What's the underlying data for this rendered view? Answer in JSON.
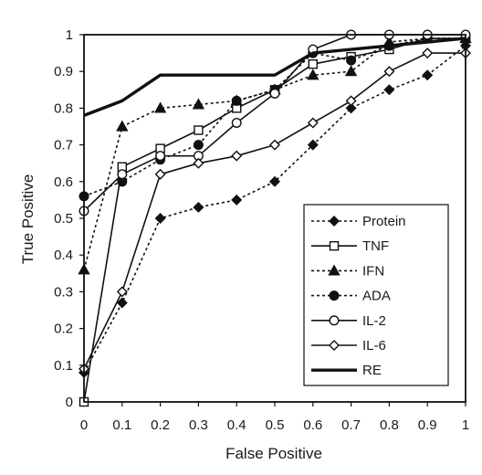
{
  "chart_data": {
    "type": "line",
    "title": "",
    "xlabel": "False Positive",
    "ylabel": "True Positive",
    "xlim": [
      0,
      1
    ],
    "ylim": [
      0,
      1
    ],
    "x_ticks": [
      "0",
      "0.1",
      "0.2",
      "0.3",
      "0.4",
      "0.5",
      "0.6",
      "0.7",
      "0.8",
      "0.9",
      "1"
    ],
    "y_ticks": [
      "0",
      "0.1",
      "0.2",
      "0.3",
      "0.4",
      "0.5",
      "0.6",
      "0.7",
      "0.8",
      "0.9",
      "1"
    ],
    "grid": false,
    "legend_position": "bottom-right",
    "series": [
      {
        "name": "Protein",
        "line": "dashed",
        "marker": "diamond",
        "filled": true,
        "width": 1.6,
        "points": [
          [
            0,
            0.08
          ],
          [
            0.1,
            0.27
          ],
          [
            0.2,
            0.5
          ],
          [
            0.3,
            0.53
          ],
          [
            0.4,
            0.55
          ],
          [
            0.5,
            0.6
          ],
          [
            0.6,
            0.7
          ],
          [
            0.7,
            0.8
          ],
          [
            0.8,
            0.85
          ],
          [
            0.9,
            0.89
          ],
          [
            1,
            0.97
          ]
        ]
      },
      {
        "name": "TNF",
        "line": "solid",
        "marker": "square",
        "filled": false,
        "width": 1.6,
        "points": [
          [
            0,
            0.0
          ],
          [
            0.1,
            0.64
          ],
          [
            0.2,
            0.69
          ],
          [
            0.3,
            0.74
          ],
          [
            0.4,
            0.8
          ],
          [
            0.5,
            0.85
          ],
          [
            0.6,
            0.92
          ],
          [
            0.7,
            0.94
          ],
          [
            0.8,
            0.96
          ],
          [
            0.9,
            0.99
          ],
          [
            1,
            0.99
          ]
        ]
      },
      {
        "name": "IFN",
        "line": "dashed",
        "marker": "triangle",
        "filled": true,
        "width": 1.6,
        "points": [
          [
            0,
            0.36
          ],
          [
            0.1,
            0.75
          ],
          [
            0.2,
            0.8
          ],
          [
            0.3,
            0.81
          ],
          [
            0.4,
            0.82
          ],
          [
            0.5,
            0.85
          ],
          [
            0.6,
            0.89
          ],
          [
            0.7,
            0.9
          ],
          [
            0.8,
            0.98
          ],
          [
            0.9,
            0.99
          ],
          [
            1,
            0.99
          ]
        ]
      },
      {
        "name": "ADA",
        "line": "dashed",
        "marker": "circle",
        "filled": true,
        "width": 1.6,
        "points": [
          [
            0,
            0.56
          ],
          [
            0.1,
            0.6
          ],
          [
            0.2,
            0.66
          ],
          [
            0.3,
            0.7
          ],
          [
            0.4,
            0.82
          ],
          [
            0.5,
            0.85
          ],
          [
            0.6,
            0.95
          ],
          [
            0.7,
            0.93
          ],
          [
            0.8,
            0.97
          ],
          [
            0.9,
            0.99
          ],
          [
            1,
            0.99
          ]
        ]
      },
      {
        "name": "IL-2",
        "line": "solid",
        "marker": "circle",
        "filled": false,
        "width": 1.6,
        "points": [
          [
            0,
            0.52
          ],
          [
            0.1,
            0.62
          ],
          [
            0.2,
            0.67
          ],
          [
            0.3,
            0.67
          ],
          [
            0.4,
            0.76
          ],
          [
            0.5,
            0.84
          ],
          [
            0.6,
            0.96
          ],
          [
            0.7,
            1.0
          ],
          [
            0.8,
            1.0
          ],
          [
            0.9,
            1.0
          ],
          [
            1,
            1.0
          ]
        ]
      },
      {
        "name": "IL-6",
        "line": "solid",
        "marker": "diamond",
        "filled": false,
        "width": 1.6,
        "points": [
          [
            0,
            0.09
          ],
          [
            0.1,
            0.3
          ],
          [
            0.2,
            0.62
          ],
          [
            0.3,
            0.65
          ],
          [
            0.4,
            0.67
          ],
          [
            0.5,
            0.7
          ],
          [
            0.6,
            0.76
          ],
          [
            0.7,
            0.82
          ],
          [
            0.8,
            0.9
          ],
          [
            0.9,
            0.95
          ],
          [
            1,
            0.95
          ]
        ]
      },
      {
        "name": "RE",
        "line": "solid",
        "marker": "none",
        "filled": false,
        "width": 3.4,
        "points": [
          [
            0,
            0.78
          ],
          [
            0.1,
            0.82
          ],
          [
            0.2,
            0.89
          ],
          [
            0.3,
            0.89
          ],
          [
            0.4,
            0.89
          ],
          [
            0.5,
            0.89
          ],
          [
            0.6,
            0.95
          ],
          [
            0.7,
            0.96
          ],
          [
            0.8,
            0.97
          ],
          [
            0.9,
            0.98
          ],
          [
            1,
            0.99
          ]
        ]
      }
    ]
  }
}
